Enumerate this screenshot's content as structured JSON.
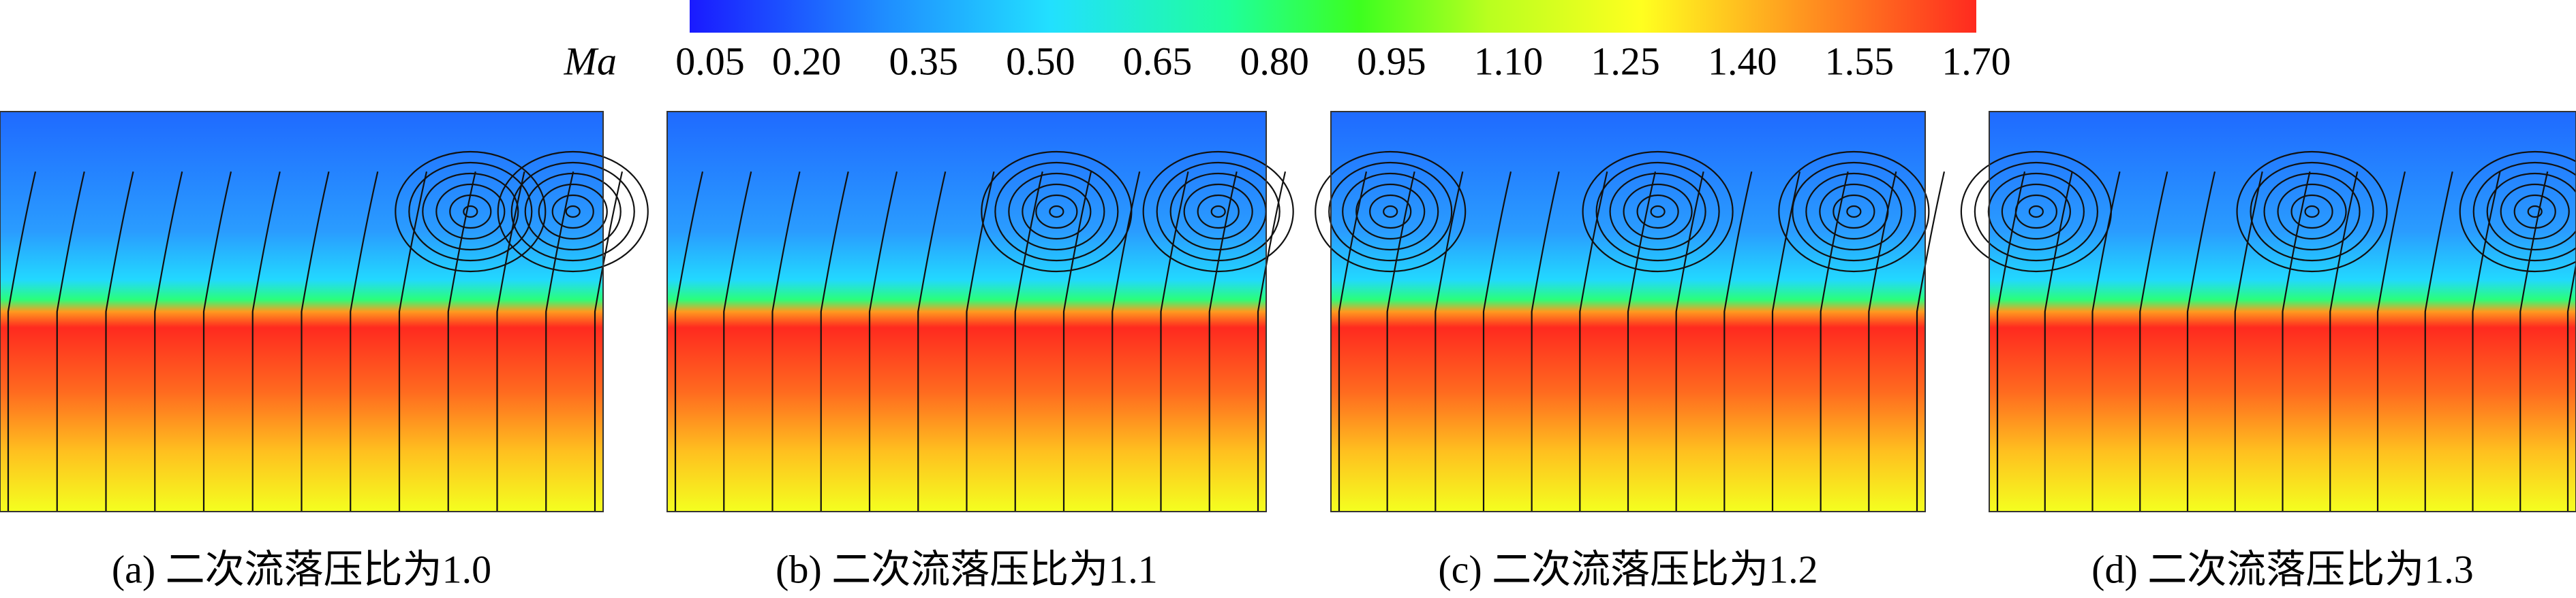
{
  "colorbar": {
    "label": "Ma",
    "ticks": [
      "0.05",
      "0.20",
      "0.35",
      "0.50",
      "0.65",
      "0.80",
      "0.95",
      "1.10",
      "1.25",
      "1.40",
      "1.55",
      "1.70"
    ]
  },
  "panels": [
    {
      "caption": "(a) 二次流落压比为1.0"
    },
    {
      "caption": "(b) 二次流落压比为1.1"
    },
    {
      "caption": "(c) 二次流落压比为1.2"
    },
    {
      "caption": "(d) 二次流落压比为1.3"
    }
  ]
}
